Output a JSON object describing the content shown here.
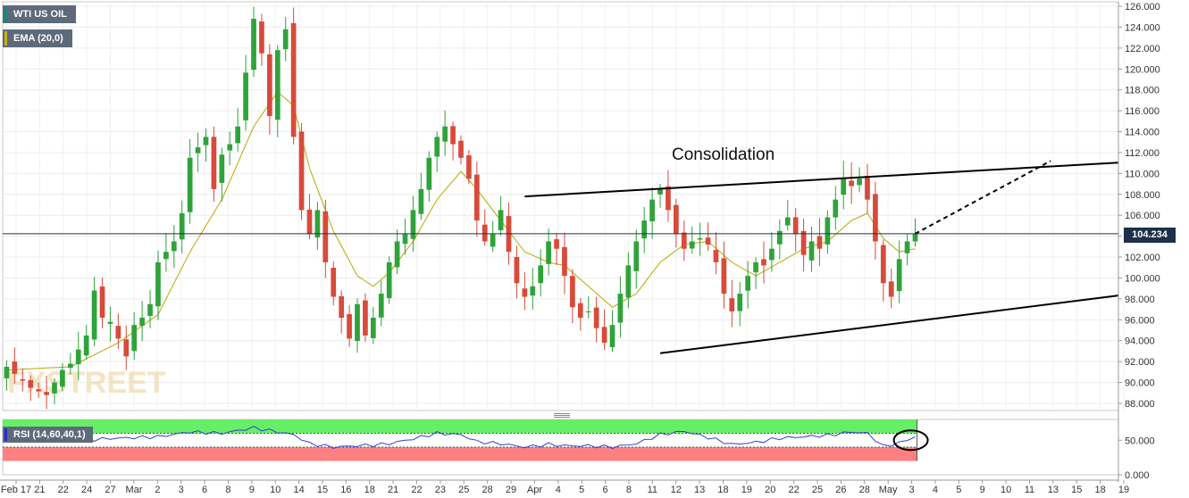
{
  "legend": {
    "symbol": "WTI US OIL",
    "indicator": "EMA (20,0)",
    "symbol_color": "#0e8c83",
    "indicator_color": "#c8b400"
  },
  "current_price": "104.234",
  "watermark": "FXSTREET",
  "chart_data": [
    {
      "type": "candlestick",
      "title": "",
      "annotation": "Consolidation",
      "y_ticks": [
        "126.000",
        "124.000",
        "122.000",
        "120.000",
        "118.000",
        "116.000",
        "114.000",
        "112.000",
        "110.000",
        "108.000",
        "106.000",
        "104.000",
        "102.000",
        "100.000",
        "98.000",
        "96.000",
        "94.000",
        "92.000",
        "90.000",
        "88.000"
      ],
      "x_ticks": [
        "Feb 17",
        "21",
        "22",
        "24",
        "27",
        "Mar",
        "2",
        "3",
        "6",
        "8",
        "9",
        "10",
        "14",
        "15",
        "16",
        "18",
        "21",
        "22",
        "23",
        "25",
        "28",
        "29",
        "Apr",
        "4",
        "5",
        "6",
        "8",
        "11",
        "12",
        "13",
        "18",
        "19",
        "20",
        "22",
        "25",
        "26",
        "28",
        "May",
        "3",
        "4",
        "5",
        "9",
        "10",
        "11",
        "13",
        "15",
        "18",
        "19"
      ],
      "ylim": [
        87,
        126.5
      ],
      "current_price_line": 104.234,
      "colors": {
        "up": "#2fa33a",
        "down": "#d84a3a",
        "ema": "#b8a800",
        "trendline": "#000000"
      },
      "price_path": [
        [
          0,
          91.5
        ],
        [
          3,
          89.5
        ],
        [
          5,
          88.8
        ],
        [
          7,
          91.2
        ],
        [
          8,
          91.8
        ],
        [
          10,
          94.5
        ],
        [
          11,
          98.8
        ],
        [
          12,
          96.2
        ],
        [
          13,
          95.8
        ],
        [
          14,
          94.2
        ],
        [
          15,
          92.5
        ],
        [
          16,
          95.5
        ],
        [
          17,
          96.2
        ],
        [
          18,
          97.5
        ],
        [
          19,
          101.5
        ],
        [
          21,
          103.5
        ],
        [
          22,
          106.2
        ],
        [
          23,
          111.5
        ],
        [
          25,
          113.5
        ],
        [
          26,
          108.5
        ],
        [
          27,
          111.8
        ],
        [
          28,
          112.8
        ],
        [
          29,
          114.5
        ],
        [
          31,
          124.8
        ],
        [
          32,
          121.5
        ],
        [
          33,
          115.5
        ],
        [
          34,
          121.8
        ],
        [
          35,
          123.8
        ],
        [
          36,
          113.5
        ],
        [
          37,
          106.5
        ],
        [
          38,
          104.2
        ],
        [
          39,
          106.5
        ],
        [
          40,
          101.5
        ],
        [
          41,
          98.2
        ],
        [
          42,
          96.2
        ],
        [
          43,
          94.2
        ],
        [
          44,
          97.5
        ],
        [
          45,
          94.5
        ],
        [
          46,
          96.2
        ],
        [
          47,
          98.5
        ],
        [
          48,
          101.5
        ],
        [
          49,
          103.5
        ],
        [
          50,
          104.2
        ],
        [
          51,
          106.5
        ],
        [
          52,
          108.5
        ],
        [
          53,
          111.5
        ],
        [
          54,
          113.5
        ],
        [
          55,
          114.5
        ],
        [
          56,
          112.8
        ],
        [
          57,
          111.5
        ],
        [
          58,
          109.5
        ],
        [
          59,
          105.5
        ],
        [
          60,
          103.5
        ],
        [
          61,
          104.2
        ],
        [
          62,
          106.5
        ],
        [
          63,
          102.5
        ],
        [
          64,
          99.5
        ],
        [
          65,
          98.2
        ],
        [
          66,
          99.2
        ],
        [
          67,
          101.2
        ],
        [
          68,
          103.5
        ],
        [
          69,
          102.8
        ],
        [
          70,
          100.2
        ],
        [
          71,
          97.2
        ],
        [
          72,
          96.2
        ],
        [
          73,
          96.8
        ],
        [
          74,
          95.2
        ],
        [
          75,
          93.8
        ],
        [
          76,
          95.5
        ],
        [
          77,
          98.5
        ],
        [
          78,
          101.2
        ],
        [
          79,
          103.5
        ],
        [
          80,
          105.5
        ],
        [
          81,
          107.5
        ],
        [
          82,
          108.5
        ],
        [
          83,
          106.5
        ],
        [
          84,
          104.2
        ],
        [
          85,
          102.8
        ],
        [
          86,
          103.5
        ],
        [
          87,
          103.8
        ],
        [
          88,
          103.2
        ],
        [
          89,
          101.5
        ],
        [
          90,
          98.5
        ],
        [
          91,
          96.8
        ],
        [
          92,
          98.5
        ],
        [
          93,
          100.2
        ],
        [
          94,
          101.5
        ],
        [
          95,
          101.2
        ],
        [
          96,
          102.8
        ],
        [
          97,
          104.5
        ],
        [
          98,
          105.8
        ],
        [
          99,
          104.2
        ],
        [
          100,
          102.2
        ],
        [
          101,
          103.5
        ],
        [
          102,
          102.8
        ],
        [
          103,
          105.8
        ],
        [
          104,
          107.5
        ],
        [
          105,
          109.5
        ],
        [
          106,
          108.8
        ],
        [
          107,
          109.5
        ],
        [
          108,
          107.5
        ],
        [
          109,
          103.5
        ],
        [
          110,
          99.5
        ],
        [
          111,
          98.2
        ],
        [
          112,
          101.8
        ],
        [
          113,
          103.5
        ],
        [
          114,
          104.234
        ]
      ],
      "ema_path": [
        [
          0,
          91.2
        ],
        [
          8,
          91.5
        ],
        [
          14,
          93.8
        ],
        [
          19,
          96.5
        ],
        [
          23,
          102.5
        ],
        [
          27,
          107.5
        ],
        [
          31,
          114.5
        ],
        [
          34,
          117.8
        ],
        [
          36,
          116.5
        ],
        [
          38,
          110.5
        ],
        [
          41,
          104.5
        ],
        [
          44,
          100.2
        ],
        [
          46,
          99.2
        ],
        [
          48,
          100.5
        ],
        [
          51,
          103.5
        ],
        [
          54,
          107.5
        ],
        [
          57,
          110.2
        ],
        [
          59,
          108.5
        ],
        [
          62,
          105.5
        ],
        [
          65,
          102.5
        ],
        [
          68,
          101.5
        ],
        [
          70,
          101.2
        ],
        [
          73,
          99.2
        ],
        [
          76,
          97.2
        ],
        [
          79,
          98.5
        ],
        [
          82,
          101.5
        ],
        [
          85,
          103.2
        ],
        [
          88,
          103.5
        ],
        [
          91,
          101.5
        ],
        [
          94,
          100.2
        ],
        [
          97,
          101.5
        ],
        [
          100,
          102.8
        ],
        [
          103,
          103.5
        ],
        [
          106,
          105.5
        ],
        [
          108,
          106.2
        ],
        [
          110,
          103.8
        ],
        [
          112,
          102.5
        ],
        [
          114,
          102.8
        ]
      ],
      "trendlines": [
        {
          "name": "upper",
          "from": [
            65,
            107.8
          ],
          "to": [
            157,
            111.8
          ]
        },
        {
          "name": "lower",
          "from": [
            82,
            92.8
          ],
          "to": [
            157,
            100.0
          ]
        },
        {
          "name": "projection",
          "from": [
            114,
            104.234
          ],
          "to": [
            131,
            111.2
          ],
          "dashed": true
        }
      ],
      "bars_total": 140
    },
    {
      "type": "line",
      "title": "",
      "indicator": "RSI (14,60,40,1)",
      "y_ticks": [
        "50.000",
        "0.000"
      ],
      "bands": {
        "overbought": 60,
        "oversold": 40,
        "upper_color": "#66ee66",
        "lower_color": "#ff8080"
      },
      "series_color": "#3a3ad0",
      "rsi_path": [
        [
          0,
          50
        ],
        [
          8,
          49
        ],
        [
          14,
          53
        ],
        [
          19,
          55
        ],
        [
          23,
          62
        ],
        [
          27,
          60
        ],
        [
          31,
          68
        ],
        [
          34,
          62
        ],
        [
          36,
          58
        ],
        [
          38,
          45
        ],
        [
          41,
          40
        ],
        [
          44,
          42
        ],
        [
          46,
          43
        ],
        [
          48,
          45
        ],
        [
          51,
          52
        ],
        [
          54,
          60
        ],
        [
          57,
          58
        ],
        [
          59,
          48
        ],
        [
          62,
          45
        ],
        [
          65,
          40
        ],
        [
          68,
          44
        ],
        [
          70,
          42
        ],
        [
          73,
          42
        ],
        [
          76,
          40
        ],
        [
          79,
          45
        ],
        [
          82,
          58
        ],
        [
          85,
          63
        ],
        [
          88,
          54
        ],
        [
          91,
          44
        ],
        [
          94,
          47
        ],
        [
          97,
          53
        ],
        [
          100,
          55
        ],
        [
          103,
          57
        ],
        [
          106,
          62
        ],
        [
          108,
          60
        ],
        [
          110,
          41
        ],
        [
          112,
          46
        ],
        [
          114,
          55
        ]
      ],
      "highlight_circle": [
        113,
        50
      ]
    }
  ]
}
